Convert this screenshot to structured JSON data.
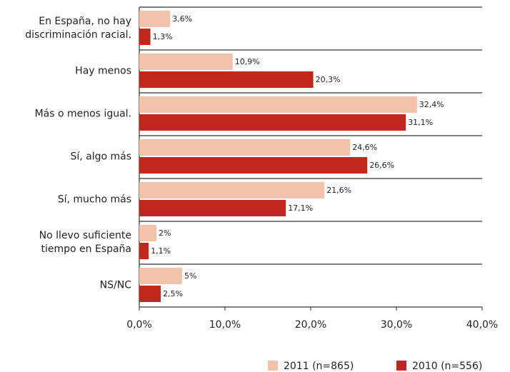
{
  "chart_data": {
    "type": "bar",
    "orientation": "horizontal",
    "categories": [
      "En España, no hay\ndiscriminación racial.",
      "Hay menos",
      "Más o menos igual.",
      "Sí, algo más",
      "Sí, mucho más",
      "No llevo suficiente\ntiempo en España",
      "NS/NC"
    ],
    "series": [
      {
        "name": "2011 (n=865)",
        "color": "#f2c2aa",
        "values": [
          3.6,
          10.9,
          32.4,
          24.6,
          21.6,
          2,
          5
        ],
        "value_labels": [
          "3,6%",
          "10,9%",
          "32,4%",
          "24,6%",
          "21,6%",
          "2%",
          "5%"
        ]
      },
      {
        "name": "2010 (n=556)",
        "color": "#c0281c",
        "values": [
          1.3,
          20.3,
          31.1,
          26.6,
          17.1,
          1.1,
          2.5
        ],
        "value_labels": [
          "1,3%",
          "20,3%",
          "31,1%",
          "26,6%",
          "17,1%",
          "1,1%",
          "2,5%"
        ]
      }
    ],
    "xlim": [
      0,
      40
    ],
    "xticks": [
      {
        "value": 0,
        "label": "0,0%"
      },
      {
        "value": 10,
        "label": "10,0%"
      },
      {
        "value": 20,
        "label": "20,0%"
      },
      {
        "value": 30,
        "label": "30,0%"
      },
      {
        "value": 40,
        "label": "40,0%"
      }
    ],
    "legend": "bottom"
  }
}
